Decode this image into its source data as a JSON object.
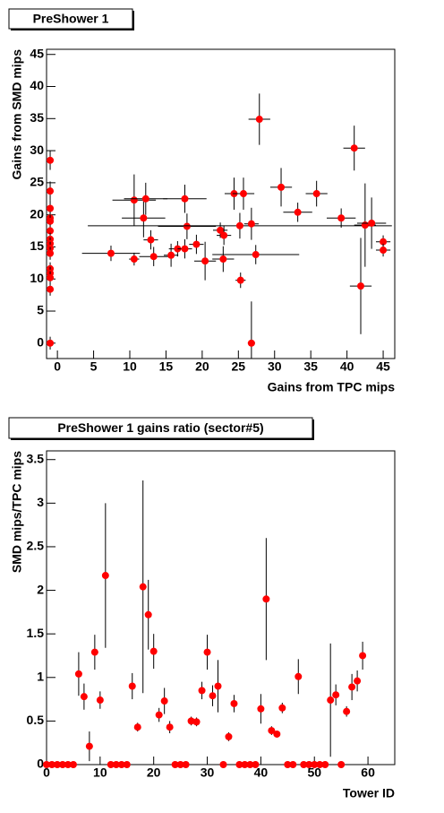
{
  "chart_data": [
    {
      "type": "scatter",
      "title": "PreShower 1",
      "xlabel": "Gains from TPC mips",
      "ylabel": "Gains from SMD mips",
      "color": "#ff0000",
      "x": [
        -1,
        -1,
        -1,
        -1,
        -1,
        -1,
        -1,
        -1,
        -1,
        -1,
        -1,
        -1,
        -1,
        -1,
        -1,
        7.4,
        10.6,
        10.6,
        11.9,
        12.2,
        12.9,
        13.3,
        15.7,
        16.6,
        17.6,
        17.6,
        17.9,
        19.2,
        20.4,
        22.5,
        23.0,
        22.9,
        24.4,
        25.2,
        25.3,
        25.7,
        26.8,
        26.8,
        27.4,
        27.9,
        30.9,
        33.2,
        35.8,
        39.2,
        41.0,
        41.9,
        42.5,
        43.4,
        45,
        45
      ],
      "x_errors": [
        0.3,
        0.3,
        0.3,
        0.3,
        0.3,
        0.3,
        0.3,
        0.3,
        0.3,
        0.3,
        0.3,
        0.3,
        0.3,
        0.3,
        0.3,
        4,
        0.7,
        3,
        3,
        3,
        1,
        2,
        1,
        1.2,
        1,
        3,
        4,
        1,
        1.5,
        1,
        1,
        1.5,
        1.3,
        21,
        0.7,
        1.5,
        1,
        0.5,
        6,
        1.5,
        1.5,
        2,
        1.5,
        2,
        1.5,
        1.5,
        1.5,
        2,
        1,
        1
      ],
      "values": [
        28.5,
        23.7,
        21,
        19.5,
        19,
        17.5,
        16.2,
        15.5,
        14.8,
        14,
        11.6,
        10.9,
        10.2,
        8.4,
        0,
        14.0,
        13.1,
        22.3,
        19.5,
        22.5,
        16.1,
        13.5,
        13.7,
        14.7,
        14.7,
        22.5,
        18.2,
        15.4,
        12.8,
        17.6,
        16.8,
        13.1,
        23.3,
        18.3,
        9.8,
        23.3,
        18.6,
        0,
        13.8,
        34.9,
        24.3,
        20.4,
        23.3,
        19.5,
        30.4,
        8.9,
        18.4,
        18.7,
        15.8,
        14.5
      ],
      "errors": [
        1.5,
        1.5,
        1.2,
        1,
        1,
        1,
        1,
        1,
        1,
        1,
        1,
        1,
        1,
        1,
        1,
        1.2,
        1,
        4,
        3,
        2.5,
        1.5,
        1.5,
        1.8,
        1.2,
        1.5,
        2.2,
        2,
        1.5,
        3,
        1.2,
        1.5,
        2,
        2.5,
        2,
        1.2,
        2.5,
        2.5,
        6.5,
        1.5,
        4,
        3,
        1.5,
        2,
        1.5,
        3.5,
        7.5,
        6.5,
        4,
        1,
        1
      ],
      "xlim": [
        -1.5,
        46.6
      ],
      "ylim": [
        -2.4,
        45.8
      ],
      "xticks": [
        0,
        5,
        10,
        15,
        20,
        25,
        30,
        35,
        40,
        45
      ],
      "yticks": [
        0,
        5,
        10,
        15,
        20,
        25,
        30,
        35,
        40,
        45
      ]
    },
    {
      "type": "scatter",
      "title": "PreShower 1 gains ratio (sector#5)",
      "xlabel": "Tower ID",
      "ylabel": "SMD mips/TPC mips",
      "color": "#ff0000",
      "x": [
        0,
        1,
        2,
        3,
        4,
        5,
        6,
        7,
        8,
        9,
        10,
        11,
        12,
        13,
        14,
        15,
        16,
        17,
        18,
        19,
        20,
        21,
        22,
        23,
        24,
        25,
        26,
        27,
        28,
        29,
        30,
        31,
        32,
        33,
        34,
        35,
        36,
        37,
        38,
        39,
        40,
        41,
        42,
        43,
        44,
        45,
        46,
        47,
        48,
        49,
        50,
        51,
        52,
        53,
        54,
        55,
        56,
        57,
        58,
        59
      ],
      "values": [
        0,
        0,
        0,
        0,
        0,
        0,
        1.04,
        0.78,
        0.21,
        1.29,
        0.74,
        2.17,
        0,
        0,
        0,
        0,
        0.9,
        0.43,
        2.04,
        1.72,
        1.3,
        0.57,
        0.73,
        0.43,
        0,
        0,
        0,
        0.5,
        0.49,
        0.85,
        1.29,
        0.79,
        0.9,
        0,
        0.32,
        0.7,
        0,
        0,
        0,
        0,
        0.64,
        1.9,
        0.39,
        0.35,
        0.65,
        0,
        0,
        1.01,
        0,
        0,
        0,
        0,
        0,
        0.74,
        0.8,
        0,
        0.61,
        0.89,
        0.96,
        1.25
      ],
      "errors": [
        0,
        0,
        0,
        0,
        0,
        0,
        0.25,
        0.15,
        0.17,
        0.2,
        0.1,
        0.83,
        0,
        0,
        0,
        0,
        0.15,
        0.05,
        1.22,
        0.4,
        0.2,
        0.08,
        0.15,
        0.07,
        0,
        0,
        0,
        0.05,
        0.05,
        0.1,
        0.2,
        0.12,
        0.3,
        0,
        0.05,
        0.1,
        0,
        0,
        0,
        0,
        0.17,
        0.7,
        0.05,
        0.03,
        0.06,
        0,
        0,
        0.2,
        0,
        0,
        0,
        0,
        0,
        0.65,
        0.12,
        0,
        0.06,
        0.15,
        0.12,
        0.16
      ],
      "xlim": [
        0,
        65
      ],
      "ylim": [
        0,
        3.6
      ],
      "xticks": [
        0,
        10,
        20,
        30,
        40,
        50,
        60
      ],
      "yticks": [
        0,
        0.5,
        1,
        1.5,
        2,
        2.5,
        3,
        3.5
      ]
    }
  ]
}
